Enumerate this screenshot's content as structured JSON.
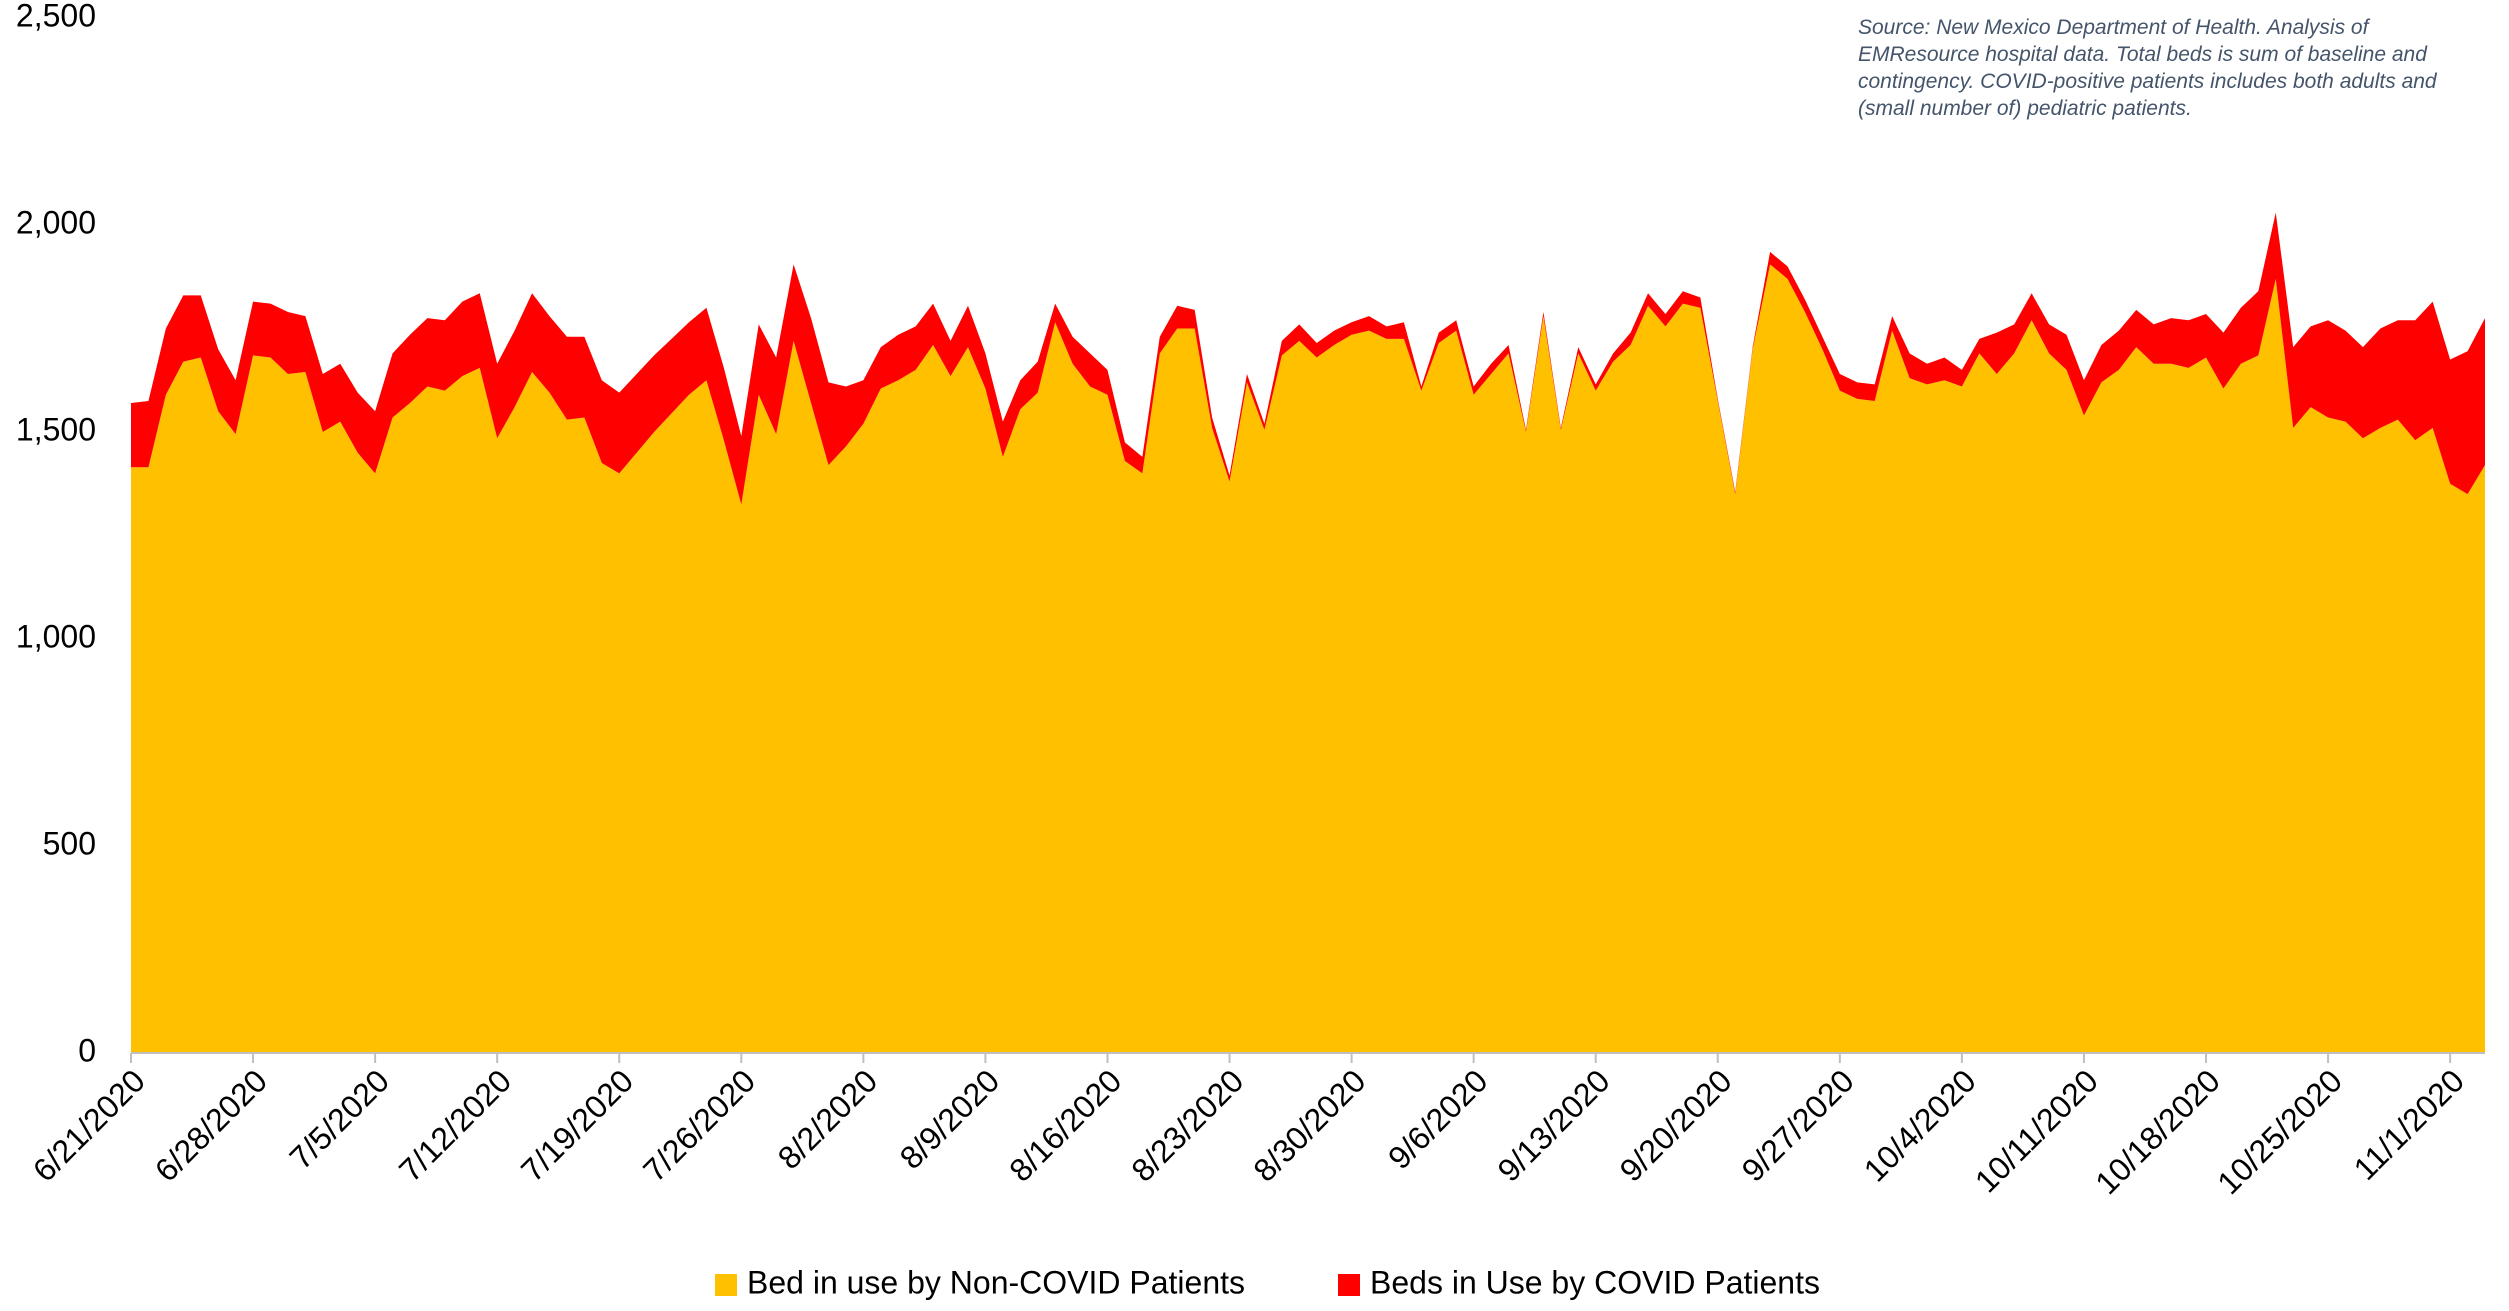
{
  "chart_data": {
    "type": "stacked_area",
    "annotation": "Source: New Mexico Department of Health. Analysis of EMResource hospital data. Total beds is sum of baseline and contingency. COVID-positive patients includes both adults and (small number of) pediatric patients.",
    "categories": [
      "6/21/2020",
      null,
      null,
      null,
      null,
      null,
      null,
      "6/28/2020",
      null,
      null,
      null,
      null,
      null,
      null,
      "7/5/2020",
      null,
      null,
      null,
      null,
      null,
      null,
      "7/12/2020",
      null,
      null,
      null,
      null,
      null,
      null,
      "7/19/2020",
      null,
      null,
      null,
      null,
      null,
      null,
      "7/26/2020",
      null,
      null,
      null,
      null,
      null,
      null,
      "8/2/2020",
      null,
      null,
      null,
      null,
      null,
      null,
      "8/9/2020",
      null,
      null,
      null,
      null,
      null,
      null,
      "8/16/2020",
      null,
      null,
      null,
      null,
      null,
      null,
      "8/23/2020",
      null,
      null,
      null,
      null,
      null,
      null,
      "8/30/2020",
      null,
      null,
      null,
      null,
      null,
      null,
      "9/6/2020",
      null,
      null,
      null,
      null,
      null,
      null,
      "9/13/2020",
      null,
      null,
      null,
      null,
      null,
      null,
      "9/20/2020",
      null,
      null,
      null,
      null,
      null,
      null,
      "9/27/2020",
      null,
      null,
      null,
      null,
      null,
      null,
      "10/4/2020",
      null,
      null,
      null,
      null,
      null,
      null,
      "10/11/2020",
      null,
      null,
      null,
      null,
      null,
      null,
      "10/18/2020",
      null,
      null,
      null,
      null,
      null,
      null,
      "10/25/2020",
      null,
      null,
      null,
      null,
      null,
      null,
      "11/1/2020",
      null,
      null
    ],
    "series": [
      {
        "name": "Bed in use by Non-COVID Patients",
        "color": "#FFC000",
        "values": [
          1415,
          1415,
          1590,
          1670,
          1680,
          1550,
          1495,
          1685,
          1680,
          1640,
          1645,
          1500,
          1525,
          1450,
          1400,
          1535,
          1570,
          1610,
          1600,
          1635,
          1655,
          1485,
          1560,
          1645,
          1595,
          1530,
          1535,
          1425,
          1400,
          1450,
          1500,
          1545,
          1590,
          1625,
          1480,
          1325,
          1590,
          1495,
          1720,
          1570,
          1420,
          1465,
          1520,
          1605,
          1625,
          1650,
          1710,
          1635,
          1705,
          1605,
          1440,
          1555,
          1595,
          1765,
          1665,
          1610,
          1590,
          1430,
          1400,
          1690,
          1750,
          1750,
          1510,
          1380,
          1620,
          1505,
          1685,
          1720,
          1680,
          1710,
          1735,
          1745,
          1725,
          1725,
          1600,
          1715,
          1745,
          1590,
          1640,
          1690,
          1500,
          1780,
          1505,
          1690,
          1600,
          1670,
          1710,
          1805,
          1755,
          1810,
          1800,
          1575,
          1350,
          1700,
          1905,
          1870,
          1790,
          1700,
          1600,
          1580,
          1575,
          1745,
          1630,
          1615,
          1625,
          1610,
          1690,
          1640,
          1690,
          1770,
          1690,
          1650,
          1540,
          1620,
          1650,
          1705,
          1665,
          1665,
          1655,
          1680,
          1605,
          1665,
          1685,
          1870,
          1510,
          1560,
          1535,
          1525,
          1485,
          1510,
          1530,
          1480,
          1510,
          1375,
          1350,
          1420
        ]
      },
      {
        "name": "Beds in Use by COVID Patients",
        "color": "#FF0000",
        "values": [
          155,
          160,
          160,
          160,
          150,
          150,
          130,
          130,
          130,
          150,
          135,
          140,
          140,
          145,
          150,
          155,
          165,
          165,
          170,
          180,
          180,
          180,
          185,
          190,
          185,
          200,
          195,
          200,
          195,
          190,
          185,
          180,
          175,
          175,
          175,
          165,
          170,
          185,
          185,
          205,
          200,
          145,
          105,
          100,
          110,
          105,
          100,
          85,
          100,
          85,
          85,
          70,
          75,
          45,
          65,
          80,
          60,
          45,
          40,
          40,
          55,
          45,
          25,
          15,
          20,
          15,
          35,
          40,
          35,
          35,
          30,
          35,
          30,
          40,
          10,
          25,
          25,
          20,
          25,
          20,
          5,
          10,
          5,
          15,
          15,
          20,
          30,
          30,
          30,
          30,
          25,
          5,
          5,
          5,
          30,
          30,
          30,
          30,
          40,
          40,
          40,
          35,
          60,
          50,
          55,
          40,
          35,
          100,
          70,
          65,
          70,
          85,
          85,
          90,
          95,
          90,
          95,
          110,
          115,
          105,
          135,
          135,
          155,
          160,
          195,
          195,
          235,
          220,
          220,
          240,
          240,
          290,
          305,
          300,
          345,
          355
        ]
      }
    ],
    "ylim": [
      0,
      2500
    ],
    "yticks": [
      0,
      500,
      {
        "value": 1000,
        "label": "1,000"
      },
      {
        "value": 1500,
        "label": "1,500"
      },
      {
        "value": 2000,
        "label": "2,000"
      },
      {
        "value": 2500,
        "label": "2,500"
      }
    ],
    "grid": false,
    "legend": "bottom"
  }
}
